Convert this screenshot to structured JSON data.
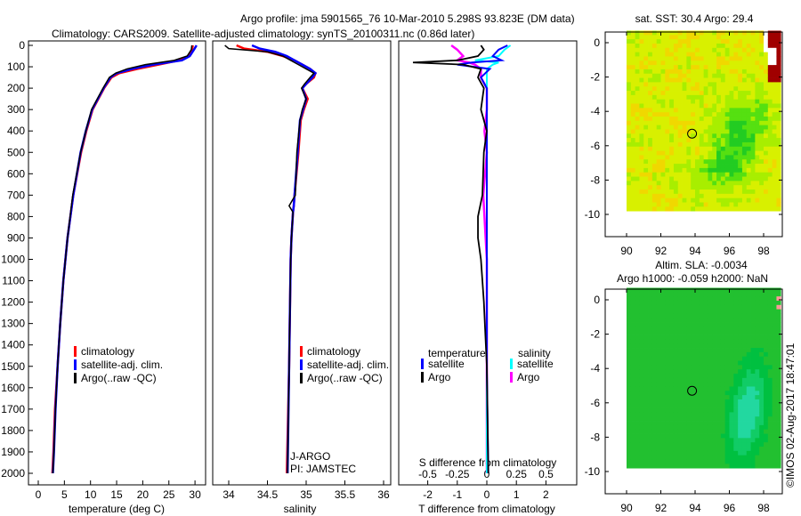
{
  "title_line1": "Argo profile: jma 5901565_76 10-Mar-2010 5.298S 93.823E (DM data)",
  "title_line2": "Climatology: CARS2009. Satellite-adjusted climatology: synTS_20100311.nc (0.86d later)",
  "credit": "©IMOS 02-Aug-2017 18:47:01",
  "colors": {
    "climatology": "#ff0000",
    "satellite": "#0000ff",
    "argo": "#000000",
    "sal_satellite": "#00ffff",
    "sal_argo": "#ff00ff"
  },
  "chart_data": [
    {
      "type": "line",
      "id": "temperature",
      "xlabel": "temperature (deg C)",
      "ylabel": "",
      "xlim": [
        -2,
        32
      ],
      "ylim": [
        2060,
        0
      ],
      "xticks": [
        "0",
        "5",
        "10",
        "15",
        "20",
        "25",
        "30"
      ],
      "xtick_values": [
        0,
        5,
        10,
        15,
        20,
        25,
        30
      ],
      "yticks": [
        "0",
        "100",
        "200",
        "300",
        "400",
        "500",
        "600",
        "700",
        "800",
        "900",
        "1000",
        "1100",
        "1200",
        "1300",
        "1400",
        "1500",
        "1600",
        "1700",
        "1800",
        "1900",
        "2000"
      ],
      "legend": [
        "climatology",
        "satellite-adj. clim.",
        "Argo(..raw -QC)"
      ],
      "depth": [
        0,
        20,
        50,
        70,
        90,
        110,
        130,
        150,
        200,
        300,
        400,
        500,
        700,
        900,
        1100,
        1300,
        1500,
        1700,
        1900,
        2000
      ],
      "series": [
        {
          "name": "climatology",
          "values": [
            29.6,
            29.4,
            28.8,
            27,
            23,
            19,
            15.5,
            14,
            12.6,
            10.4,
            9.2,
            8.2,
            6.7,
            5.6,
            4.8,
            4.2,
            3.7,
            3.2,
            2.9,
            2.7
          ]
        },
        {
          "name": "satellite-adj. clim.",
          "values": [
            30.3,
            29.8,
            29,
            27.5,
            22,
            18,
            15,
            13.8,
            12.5,
            10.3,
            9.1,
            8.1,
            6.7,
            5.6,
            4.8,
            4.2,
            3.7,
            3.3,
            3.0,
            2.8
          ]
        },
        {
          "name": "Argo(..raw -QC)",
          "values": [
            29.4,
            29.3,
            28.5,
            26,
            20.5,
            17,
            14.8,
            13.6,
            12.4,
            10.2,
            9.1,
            8.1,
            6.6,
            5.6,
            4.8,
            4.2,
            3.7,
            3.3,
            3.0,
            2.8
          ]
        }
      ]
    },
    {
      "type": "line",
      "id": "salinity",
      "xlabel": "salinity",
      "xlim": [
        33.7,
        36.1
      ],
      "ylim": [
        2060,
        0
      ],
      "xticks": [
        "34",
        "34.5",
        "35",
        "35.5",
        "36"
      ],
      "xtick_values": [
        34,
        34.5,
        35,
        35.5,
        36
      ],
      "legend": [
        "climatology",
        "satellite-adj. clim.",
        "Argo(..raw -QC)"
      ],
      "annotation": [
        "J-ARGO",
        "PI: JAMSTEC"
      ],
      "depth": [
        0,
        15,
        30,
        50,
        70,
        90,
        110,
        130,
        150,
        180,
        200,
        250,
        300,
        350,
        500,
        700,
        750,
        780,
        900,
        1000,
        1500,
        2000
      ],
      "series": [
        {
          "name": "climatology",
          "values": [
            34.1,
            34.2,
            34.5,
            34.7,
            34.85,
            34.95,
            35.05,
            35.12,
            35.1,
            35.0,
            34.95,
            35.02,
            34.97,
            34.93,
            34.9,
            34.85,
            34.84,
            34.83,
            34.81,
            34.8,
            34.78,
            34.75
          ]
        },
        {
          "name": "satellite-adj. clim.",
          "values": [
            34.3,
            34.4,
            34.6,
            34.75,
            34.85,
            34.95,
            35.05,
            35.12,
            35.08,
            35.0,
            34.95,
            35.0,
            34.96,
            34.92,
            34.89,
            34.85,
            34.84,
            34.83,
            34.81,
            34.8,
            34.78,
            34.76
          ]
        },
        {
          "name": "Argo(..raw -QC)",
          "values": [
            33.95,
            34.0,
            34.5,
            34.7,
            34.8,
            34.9,
            35.0,
            35.1,
            35.05,
            34.98,
            34.94,
            35.0,
            34.95,
            34.92,
            34.88,
            34.86,
            34.78,
            34.83,
            34.81,
            34.8,
            34.78,
            34.76
          ]
        }
      ]
    },
    {
      "type": "line",
      "id": "difference",
      "xlabel": "T difference from climatology",
      "x2label": "S difference from climatology",
      "xlim": [
        -3,
        3
      ],
      "ylim": [
        2060,
        0
      ],
      "xticks": [
        "-2",
        "-1",
        "0",
        "1",
        "2"
      ],
      "xtick_values": [
        -2,
        -1,
        0,
        1,
        2
      ],
      "x2ticks": [
        "-0.5",
        "-0.25",
        "0",
        "0.25",
        "0.5"
      ],
      "x2tick_values": [
        -0.5,
        -0.25,
        0,
        0.25,
        0.5
      ],
      "legend_headers": [
        "temperature",
        "salinity"
      ],
      "legend": [
        "satellite",
        "Argo",
        "satellite",
        "Argo"
      ],
      "depth": [
        0,
        20,
        50,
        70,
        80,
        90,
        110,
        150,
        200,
        300,
        400,
        500,
        700,
        800,
        900,
        1000,
        1200,
        1500,
        2000
      ],
      "series": [
        {
          "name": "T satellite",
          "values": [
            0.7,
            0.4,
            0.2,
            0.5,
            -0.5,
            -1.0,
            0.1,
            -0.2,
            0,
            0,
            0,
            0,
            0,
            0,
            0,
            0,
            0,
            0,
            0.05
          ]
        },
        {
          "name": "T Argo",
          "values": [
            -0.2,
            -0.1,
            -0.3,
            -1.0,
            -2.5,
            -0.8,
            -0.2,
            -0.3,
            -0.1,
            -0.2,
            0,
            -0.1,
            -0.15,
            -0.3,
            -0.3,
            -0.2,
            -0.1,
            0,
            0.05
          ]
        },
        {
          "name": "S satellite",
          "values": [
            0.2,
            0.15,
            0.1,
            -0.1,
            0.1,
            0.05,
            0,
            0,
            0,
            0,
            0,
            0,
            0,
            0,
            0,
            0,
            0,
            0,
            0
          ]
        },
        {
          "name": "S Argo",
          "values": [
            -0.3,
            -0.25,
            -0.2,
            -0.25,
            -0.15,
            -0.1,
            -0.05,
            -0.05,
            0,
            0,
            -0.02,
            0,
            -0.03,
            -0.02,
            -0.01,
            0,
            0,
            0,
            0
          ]
        }
      ]
    },
    {
      "type": "heatmap",
      "id": "sst-map",
      "title": "sat. SST: 30.4 Argo: 29.4",
      "xticks": [
        "90",
        "92",
        "94",
        "96",
        "98"
      ],
      "yticks": [
        "0",
        "-2",
        "-4",
        "-6",
        "-8",
        "-10"
      ],
      "argo_position": [
        93.823,
        -5.298
      ]
    },
    {
      "type": "heatmap",
      "id": "sla-map",
      "title_line1": "Altim. SLA: -0.0034",
      "title_line2": "Argo h1000: -0.059 h2000: NaN",
      "xticks": [
        "90",
        "92",
        "94",
        "96",
        "98"
      ],
      "yticks": [
        "0",
        "-2",
        "-4",
        "-6",
        "-8",
        "-10"
      ],
      "argo_position": [
        93.823,
        -5.298
      ]
    }
  ]
}
